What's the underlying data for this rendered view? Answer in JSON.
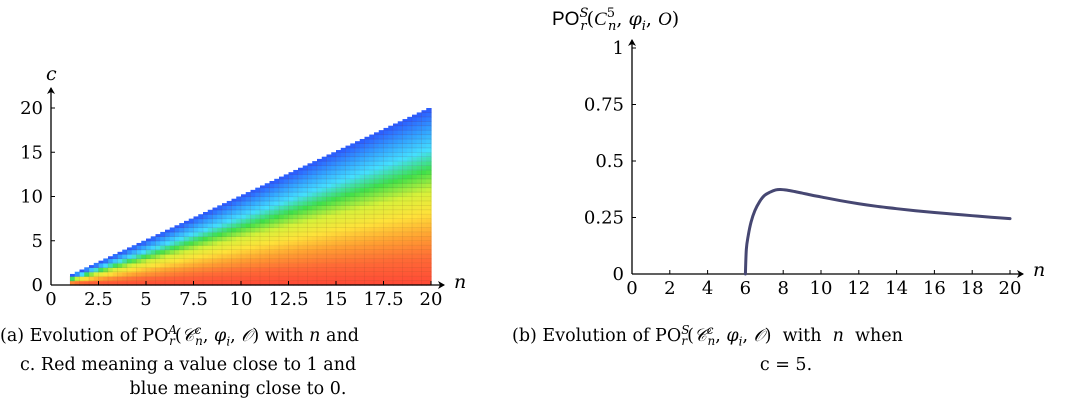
{
  "chart_data": [
    {
      "type": "heatmap",
      "xlabel": "n",
      "ylabel": "c",
      "x_ticks": [
        "0",
        "2.5",
        "5",
        "7.5",
        "10",
        "12.5",
        "15",
        "17.5",
        "20"
      ],
      "y_ticks": [
        "0",
        "5",
        "10",
        "15",
        "20"
      ],
      "xlim": [
        0,
        20
      ],
      "ylim": [
        0,
        20
      ],
      "domain": "1 ≤ n ≤ 20, 0 ≤ c ≤ n",
      "value_range": [
        0,
        1
      ],
      "colormap": [
        "#2b5bff",
        "#31a0ff",
        "#44e0ff",
        "#3ee04a",
        "#d6f23a",
        "#ffe23a",
        "#ffa132",
        "#ff6a36",
        "#ff4a36"
      ],
      "rows_value_near_c0": 1,
      "rows_value_near_cn": 0
    },
    {
      "type": "line",
      "ylabel": "PO_r^S(C_n^5, φ_i, O)",
      "xlabel": "n",
      "x_ticks": [
        "0",
        "2",
        "4",
        "6",
        "8",
        "10",
        "12",
        "14",
        "16",
        "18",
        "20"
      ],
      "y_ticks": [
        "0",
        "0.25",
        "0.5",
        "0.75",
        "1"
      ],
      "xlim": [
        0,
        20
      ],
      "ylim": [
        0,
        1
      ],
      "line_color": "#464772",
      "series": [
        {
          "x": [
            6,
            6.05,
            6.15,
            6.3,
            6.5,
            6.75,
            7,
            7.3,
            7.6,
            7.85,
            8.2,
            8.6,
            9,
            9.5,
            10,
            11,
            12,
            13,
            14,
            15,
            16,
            17,
            18,
            19,
            20
          ],
          "values": [
            0,
            0.11,
            0.17,
            0.23,
            0.28,
            0.32,
            0.347,
            0.362,
            0.372,
            0.374,
            0.371,
            0.365,
            0.358,
            0.349,
            0.341,
            0.325,
            0.311,
            0.299,
            0.289,
            0.28,
            0.272,
            0.265,
            0.258,
            0.251,
            0.245
          ]
        }
      ]
    }
  ],
  "captions": {
    "a": {
      "line1": "(a) Evolution of PO",
      "line2": "c. Red meaning a value close to 1 and",
      "line3": "blue meaning close to 0."
    },
    "b": {
      "line1": "(b) Evolution of  PO",
      "line2": "c = 5."
    }
  }
}
